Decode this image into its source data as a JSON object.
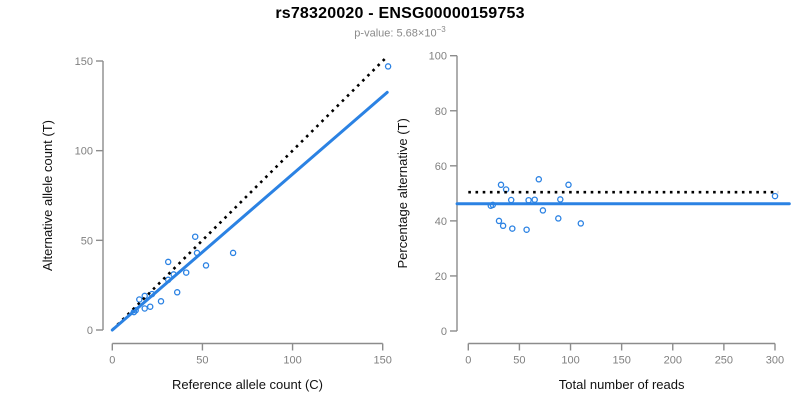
{
  "title": "rs78320020 - ENSG00000159753",
  "subtitle": {
    "text": "p-value: 5.68×10",
    "superscript": "−3"
  },
  "colors": {
    "accent_blue": "#2b82e3",
    "dotted_line_black": "#000000",
    "axis_gray": "#8c8c8c",
    "tick_label_gray": "#808080",
    "title_black": "#000000",
    "subtitle_gray": "#8a8a8a",
    "background": "#ffffff"
  },
  "chart_data": [
    {
      "type": "scatter",
      "name": "allele-counts-scatter",
      "xlabel": "Reference allele count (C)",
      "ylabel": "Alternative allele count (T)",
      "xlim": [
        0,
        150
      ],
      "ylim": [
        0,
        150
      ],
      "xticks": [
        0,
        50,
        100,
        150
      ],
      "yticks": [
        0,
        50,
        100,
        150
      ],
      "grid": false,
      "legend": "none",
      "marker": "open-circle",
      "points": [
        [
          153,
          147
        ],
        [
          46,
          52
        ],
        [
          47,
          43
        ],
        [
          67,
          43
        ],
        [
          52,
          36
        ],
        [
          31,
          38
        ],
        [
          41,
          32
        ],
        [
          31,
          28
        ],
        [
          34,
          31
        ],
        [
          36,
          21
        ],
        [
          27,
          16
        ],
        [
          22,
          20
        ],
        [
          18,
          19
        ],
        [
          15,
          17
        ],
        [
          21,
          13
        ],
        [
          18,
          12
        ],
        [
          13,
          11
        ],
        [
          12,
          10
        ]
      ],
      "lines": [
        {
          "name": "identity-line",
          "style": "dotted",
          "color": "#000000",
          "x1": 0,
          "y1": 0,
          "x2": 151.5,
          "y2": 151.5
        },
        {
          "name": "fit-line",
          "style": "solid",
          "color": "#2b82e3",
          "x1": 0,
          "y1": 0,
          "x2": 152.5,
          "y2": 132.5
        }
      ]
    },
    {
      "type": "scatter",
      "name": "percentage-vs-reads-scatter",
      "xlabel": "Total number of reads",
      "ylabel": "Percentage alternative (T)",
      "xlim": [
        0,
        300
      ],
      "ylim": [
        0,
        100
      ],
      "xticks": [
        0,
        50,
        100,
        150,
        200,
        250,
        300
      ],
      "yticks": [
        0,
        20,
        40,
        60,
        80,
        100
      ],
      "grid": false,
      "legend": "none",
      "marker": "open-circle",
      "points": [
        [
          300,
          49.0
        ],
        [
          98,
          53.1
        ],
        [
          90,
          47.8
        ],
        [
          110,
          39.1
        ],
        [
          88,
          40.9
        ],
        [
          69,
          55.1
        ],
        [
          73,
          43.8
        ],
        [
          59,
          47.5
        ],
        [
          65,
          47.7
        ],
        [
          57,
          36.8
        ],
        [
          43,
          37.2
        ],
        [
          42,
          47.6
        ],
        [
          37,
          51.4
        ],
        [
          32,
          53.1
        ],
        [
          34,
          38.2
        ],
        [
          30,
          40.0
        ],
        [
          24,
          45.8
        ],
        [
          22,
          45.5
        ]
      ],
      "lines": [
        {
          "name": "fifty-percent-line",
          "style": "dotted",
          "color": "#000000",
          "x1": 0,
          "y1": 50.4,
          "x2": 303,
          "y2": 50.4
        },
        {
          "name": "mean-percentage-line",
          "style": "solid",
          "color": "#2b82e3",
          "x1": -11,
          "y1": 46.2,
          "x2": 314,
          "y2": 46.2
        }
      ]
    }
  ]
}
